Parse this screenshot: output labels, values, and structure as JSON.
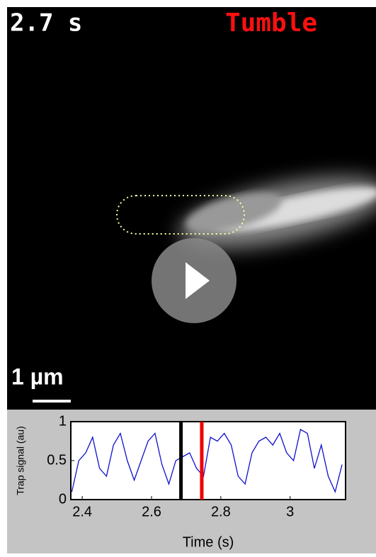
{
  "overlay": {
    "time": "2.7 s",
    "state": "Tumble",
    "scale": "1 µm"
  },
  "chart_data": {
    "type": "line",
    "ylabel": "Trap signal (au)",
    "xlabel": "Time (s)",
    "xlim": [
      2.367,
      3.16
    ],
    "ylim": [
      0,
      1
    ],
    "xticks": [
      2.4,
      2.6,
      2.8,
      3
    ],
    "yticks": [
      0,
      0.5,
      1
    ],
    "x": [
      2.37,
      2.39,
      2.41,
      2.43,
      2.45,
      2.47,
      2.49,
      2.51,
      2.53,
      2.55,
      2.57,
      2.59,
      2.61,
      2.63,
      2.65,
      2.67,
      2.69,
      2.71,
      2.73,
      2.75,
      2.77,
      2.79,
      2.81,
      2.83,
      2.85,
      2.87,
      2.89,
      2.91,
      2.93,
      2.95,
      2.97,
      2.99,
      3.01,
      3.03,
      3.05,
      3.07,
      3.09,
      3.11,
      3.13,
      3.15
    ],
    "series": [
      {
        "color": "#1010d0",
        "values": [
          0.1,
          0.5,
          0.6,
          0.8,
          0.4,
          0.3,
          0.7,
          0.85,
          0.5,
          0.25,
          0.5,
          0.75,
          0.85,
          0.45,
          0.2,
          0.5,
          0.55,
          0.6,
          0.4,
          0.3,
          0.8,
          0.75,
          0.85,
          0.7,
          0.3,
          0.2,
          0.6,
          0.75,
          0.8,
          0.7,
          0.85,
          0.6,
          0.5,
          0.9,
          0.85,
          0.4,
          0.7,
          0.3,
          0.1,
          0.45
        ]
      }
    ],
    "markers": [
      {
        "x": 2.685,
        "color": "#000000"
      },
      {
        "x": 2.745,
        "color": "#ee0000"
      }
    ]
  }
}
